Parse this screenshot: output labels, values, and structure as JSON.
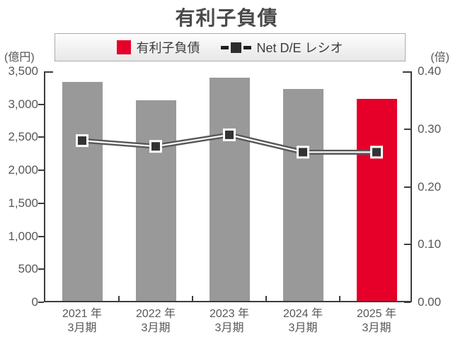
{
  "title": "有利子負債",
  "legend": {
    "bar_label": "有利子負債",
    "line_label": "Net D/E レシオ"
  },
  "axes": {
    "left_unit": "(億円)",
    "right_unit": "(倍)"
  },
  "colors": {
    "bar_gray": "#999999",
    "bar_red": "#e60029",
    "line": "#595757",
    "line_inner": "#ffffff",
    "marker_fill": "#333333",
    "marker_stroke": "#ffffff"
  },
  "chart_data": {
    "type": "bar+line",
    "title": "有利子負債",
    "categories": [
      [
        "2021 年",
        "3月期"
      ],
      [
        "2022 年",
        "3月期"
      ],
      [
        "2023 年",
        "3月期"
      ],
      [
        "2024 年",
        "3月期"
      ],
      [
        "2025 年",
        "3月期"
      ]
    ],
    "series": [
      {
        "name": "有利子負債",
        "type": "bar",
        "axis": "left",
        "unit": "億円",
        "values": [
          3320,
          3040,
          3380,
          3210,
          3060
        ],
        "bar_colors": [
          "#999999",
          "#999999",
          "#999999",
          "#999999",
          "#e60029"
        ]
      },
      {
        "name": "Net D/E レシオ",
        "type": "line",
        "axis": "right",
        "unit": "倍",
        "values": [
          0.28,
          0.27,
          0.29,
          0.26,
          0.26
        ]
      }
    ],
    "left_axis": {
      "min": 0,
      "max": 3500,
      "step": 500,
      "tick_labels": [
        "3,500",
        "3,000",
        "2,500",
        "2,000",
        "1,500",
        "1,000",
        "500",
        "0"
      ]
    },
    "right_axis": {
      "min": 0,
      "max": 0.4,
      "step": 0.1,
      "tick_labels": [
        "0.40",
        "0.30",
        "0.20",
        "0.10",
        "0.00"
      ]
    },
    "grid": false,
    "legend_position": "top"
  }
}
